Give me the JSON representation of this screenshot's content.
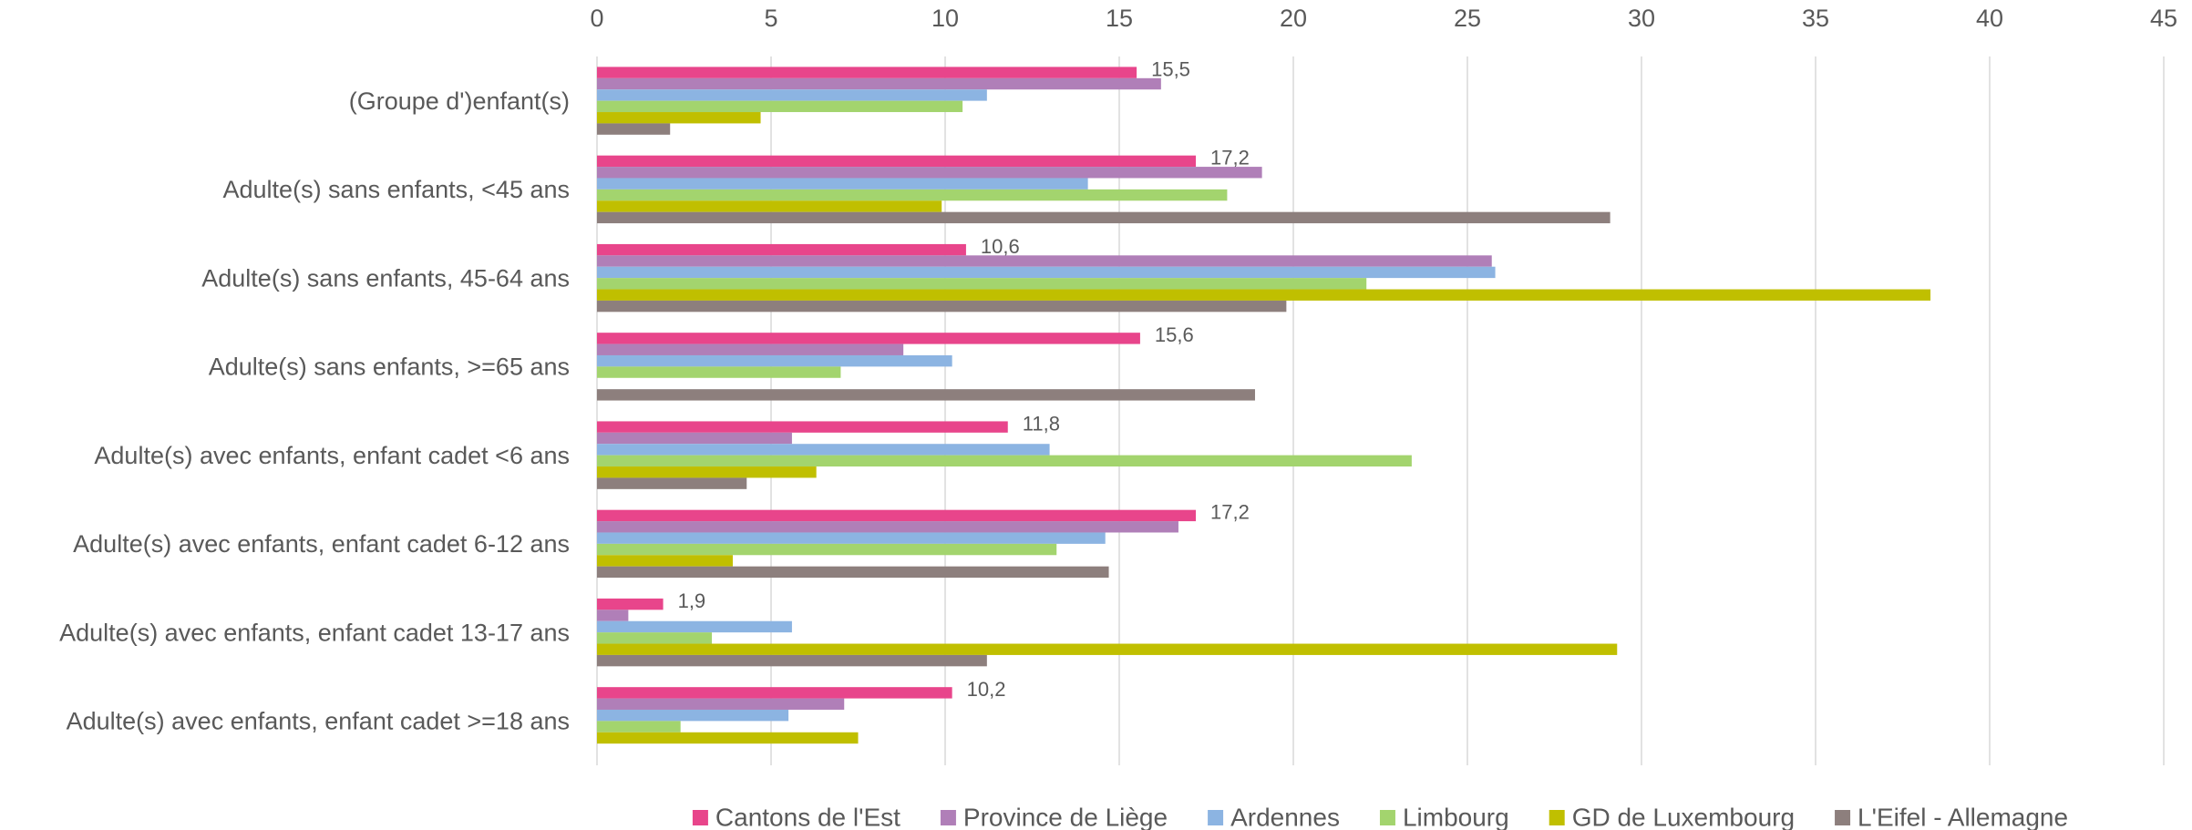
{
  "chart_data": {
    "type": "hbar",
    "categories": [
      "(Groupe d')enfant(s)",
      "Adulte(s) sans enfants, <45 ans",
      "Adulte(s) sans enfants, 45-64 ans",
      "Adulte(s) sans enfants, >=65 ans",
      "Adulte(s) avec enfants, enfant cadet <6 ans",
      "Adulte(s) avec enfants, enfant cadet 6-12 ans",
      "Adulte(s) avec enfants, enfant cadet 13-17 ans",
      "Adulte(s) avec enfants, enfant cadet >=18 ans"
    ],
    "series": [
      {
        "name": "Cantons de l'Est",
        "color": "#e8458b",
        "values": [
          15.5,
          17.2,
          10.6,
          15.6,
          11.8,
          17.2,
          1.9,
          10.2
        ],
        "value_labels": [
          "15,5",
          "17,2",
          "10,6",
          "15,6",
          "11,8",
          "17,2",
          "1,9",
          "10,2"
        ]
      },
      {
        "name": "Province de Liège",
        "color": "#b07fb8",
        "values": [
          16.2,
          19.1,
          25.7,
          8.8,
          5.6,
          16.7,
          0.9,
          7.1
        ]
      },
      {
        "name": "Ardennes",
        "color": "#8cb4e2",
        "values": [
          11.2,
          14.1,
          25.8,
          10.2,
          13.0,
          14.6,
          5.6,
          5.5
        ]
      },
      {
        "name": "Limbourg",
        "color": "#a3d46e",
        "values": [
          10.5,
          18.1,
          22.1,
          7.0,
          23.4,
          13.2,
          3.3,
          2.4
        ]
      },
      {
        "name": "GD de Luxembourg",
        "color": "#c0bf00",
        "values": [
          4.7,
          9.9,
          38.3,
          null,
          6.3,
          3.9,
          29.3,
          7.5
        ]
      },
      {
        "name": "L'Eifel - Allemagne",
        "color": "#8d7f7d",
        "values": [
          2.1,
          29.1,
          19.8,
          18.9,
          4.3,
          14.7,
          11.2,
          null
        ]
      }
    ],
    "xlim": [
      0,
      45
    ],
    "xticks": [
      0,
      5,
      10,
      15,
      20,
      25,
      30,
      35,
      40,
      45
    ],
    "grid": true,
    "legend": "bottom"
  }
}
